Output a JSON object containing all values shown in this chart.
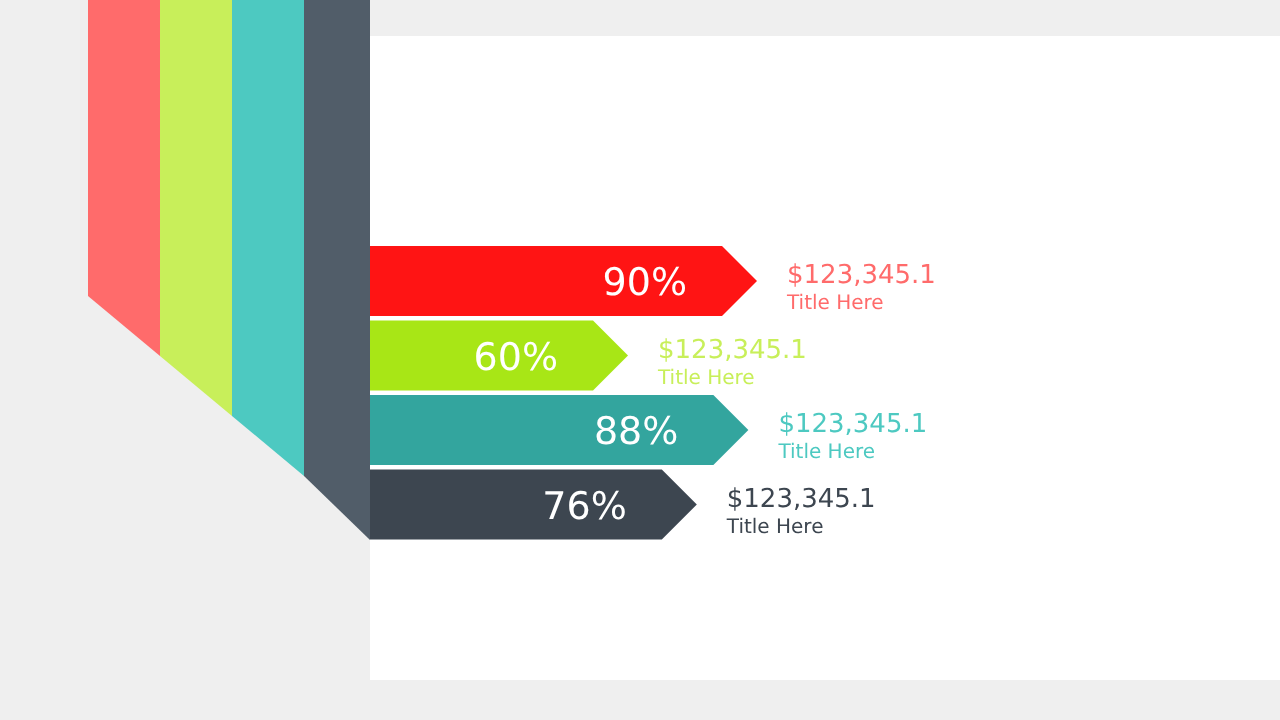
{
  "chart_data": {
    "type": "bar",
    "orientation": "horizontal",
    "categories": [
      null,
      null,
      null,
      null
    ],
    "values": [
      90,
      60,
      88,
      76
    ],
    "colors": [
      "#ff1414",
      "#a8e616",
      "#33a59e",
      "#3d4650"
    ],
    "value_labels": [
      "90%",
      "60%",
      "88%",
      "76%"
    ],
    "annotations": [
      "$123,345.1",
      "Title Here",
      "$123,345.1",
      "Title Here",
      "$123,345.1",
      "Title Here",
      "$123,345.1",
      "Title Here"
    ]
  }
}
